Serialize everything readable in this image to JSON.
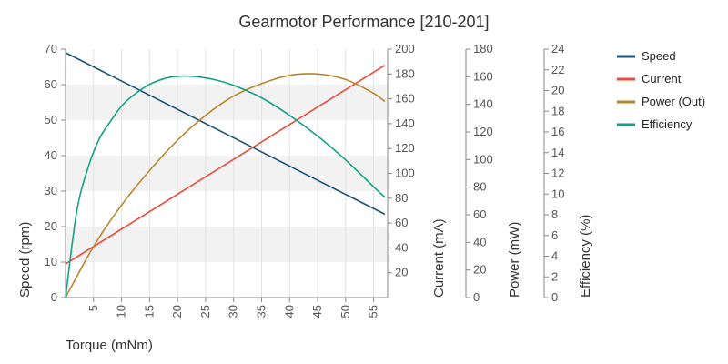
{
  "chart_data": {
    "type": "line",
    "title": "Gearmotor Performance [210-201]",
    "xlabel": "Torque (mNm)",
    "xlim": [
      0,
      57.5
    ],
    "x_ticks": [
      5,
      10,
      15,
      20,
      25,
      30,
      35,
      40,
      45,
      50,
      55
    ],
    "grid": true,
    "legend_position": "right",
    "axes": [
      {
        "id": "speed",
        "label": "Speed (rpm)",
        "range": [
          0,
          70
        ],
        "ticks": [
          0,
          10,
          20,
          30,
          40,
          50,
          60,
          70
        ]
      },
      {
        "id": "current",
        "label": "Current (mA)",
        "range": [
          0,
          200
        ],
        "ticks": [
          20,
          40,
          60,
          80,
          100,
          120,
          140,
          160,
          180,
          200
        ]
      },
      {
        "id": "power",
        "label": "Power (mW)",
        "range": [
          0,
          180
        ],
        "ticks": [
          0,
          20,
          40,
          60,
          80,
          100,
          120,
          140,
          160,
          180
        ]
      },
      {
        "id": "efficiency",
        "label": "Efficiency (%)",
        "range": [
          0,
          24
        ],
        "ticks": [
          0,
          2,
          4,
          6,
          8,
          10,
          12,
          14,
          16,
          18,
          20,
          22,
          24
        ]
      }
    ],
    "series": [
      {
        "name": "Speed",
        "axis": "speed",
        "color": "#1a5276",
        "x": [
          0,
          57
        ],
        "y": [
          69,
          23.5
        ]
      },
      {
        "name": "Current",
        "axis": "current",
        "color": "#e74c3c",
        "x": [
          0,
          57
        ],
        "y": [
          27,
          187
        ]
      },
      {
        "name": "Power (Out)",
        "axis": "power",
        "color": "#b8862b",
        "x": [
          0,
          5,
          10,
          15,
          20,
          25,
          30,
          35,
          40,
          45,
          50,
          55,
          57
        ],
        "y": [
          0,
          37,
          67,
          92,
          114,
          132,
          146,
          155,
          161,
          162,
          158,
          148,
          142
        ]
      },
      {
        "name": "Efficiency",
        "axis": "efficiency",
        "color": "#16a085",
        "x": [
          0,
          2,
          4,
          6,
          8,
          10,
          12,
          15,
          18,
          21,
          24,
          27,
          30,
          35,
          40,
          45,
          50,
          55,
          57
        ],
        "y": [
          0,
          8.3,
          12.5,
          15.3,
          17.0,
          18.5,
          19.5,
          20.6,
          21.2,
          21.4,
          21.3,
          21.0,
          20.5,
          19.3,
          17.6,
          15.6,
          13.3,
          10.7,
          9.7
        ]
      }
    ]
  }
}
